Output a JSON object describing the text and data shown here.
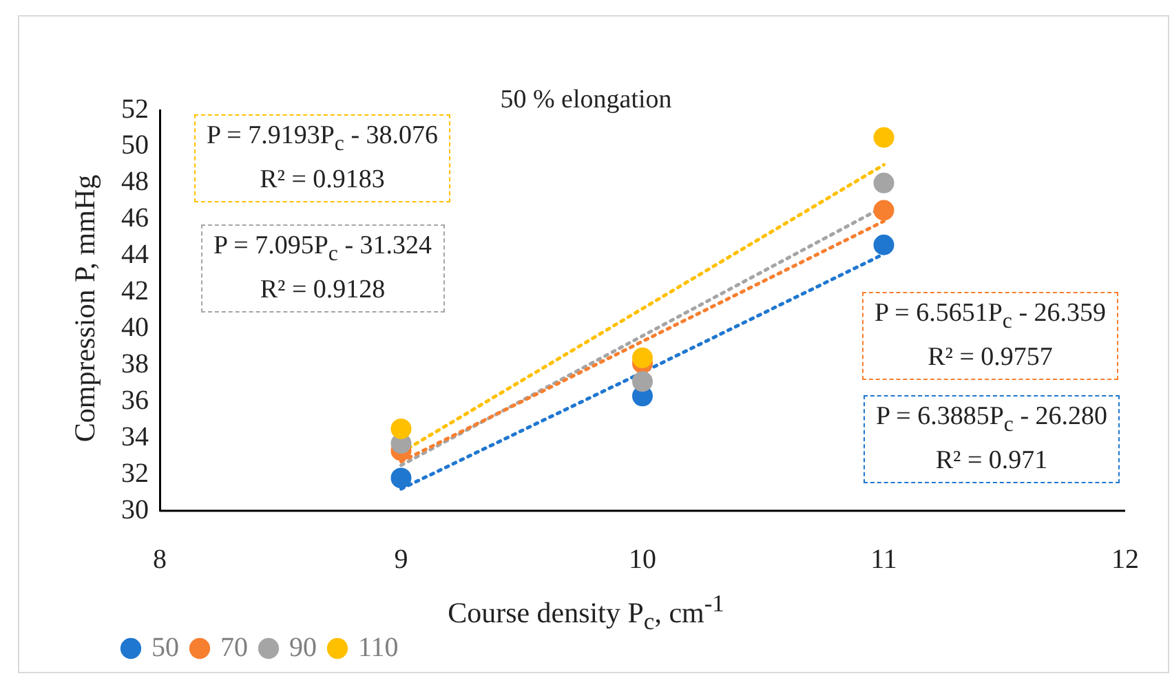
{
  "chart_data": {
    "type": "scatter",
    "title": "50 % elongation",
    "xlabel": "Course density P$_{c}$, cm$^{-1}$",
    "ylabel": "Compression P, mmHg",
    "x": [
      9,
      10,
      11
    ],
    "series": [
      {
        "name": "50",
        "color": "#1f77d0",
        "values": [
          31.8,
          36.3,
          44.6
        ]
      },
      {
        "name": "70",
        "color": "#f77f30",
        "values": [
          33.3,
          38.1,
          46.5
        ]
      },
      {
        "name": "90",
        "color": "#a5a5a5",
        "values": [
          33.7,
          37.1,
          48.0
        ]
      },
      {
        "name": "110",
        "color": "#ffc000",
        "values": [
          34.5,
          38.4,
          50.5
        ]
      },
      {
        "type": "line",
        "color": "#1f77d0",
        "values": [
          31.2,
          37.6,
          44.1
        ],
        "line_style": "dotted",
        "marker": "none"
      },
      {
        "type": "line",
        "color": "#f77f30",
        "values": [
          32.7,
          39.3,
          45.9
        ],
        "line_style": "dotted",
        "marker": "none"
      },
      {
        "type": "line",
        "color": "#a5a5a5",
        "values": [
          32.5,
          39.6,
          46.7
        ],
        "line_style": "dotted",
        "marker": "none"
      },
      {
        "type": "line",
        "color": "#ffc000",
        "values": [
          33.2,
          41.1,
          49.0
        ],
        "line_style": "dotted",
        "marker": "none"
      }
    ],
    "annotations": [
      "P = 6.3885P$_{c}$ - 26.280\nR² = 0.971",
      "P = 6.5651P$_{c}$ - 26.359\nR² = 0.9757",
      "P = 7.095P$_{c}$ - 31.324\nR² = 0.9128",
      "P = 7.9193P$_{c}$ - 38.076\nR² = 0.9183"
    ],
    "xlim": [
      8,
      12
    ],
    "xticks": [
      8,
      9,
      10,
      11,
      12
    ],
    "ylim": [
      30,
      52
    ],
    "yticks": [
      30,
      32,
      34,
      36,
      38,
      40,
      42,
      44,
      46,
      48,
      50,
      52
    ],
    "grid": false,
    "legend": "bottom left",
    "marker": "circle"
  }
}
